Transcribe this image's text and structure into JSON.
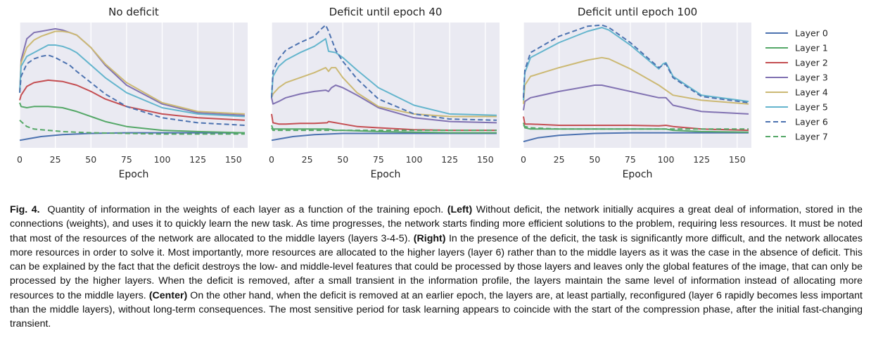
{
  "chart_data": [
    {
      "type": "line",
      "title": "No deficit",
      "xlabel": "Epoch",
      "ylabel": "",
      "xlim": [
        0,
        160
      ],
      "ylim": [
        0,
        100
      ],
      "xticks": [
        "0",
        "25",
        "50",
        "75",
        "100",
        "125",
        "150"
      ],
      "yticks_shown": false,
      "grid": true,
      "series": [
        {
          "name": "Layer 0",
          "x": [
            0,
            5,
            15,
            30,
            50,
            75,
            100,
            125,
            158
          ],
          "y": [
            6,
            7,
            9,
            10.5,
            11.5,
            12,
            12,
            12,
            12
          ]
        },
        {
          "name": "Layer 1",
          "x": [
            0,
            1,
            5,
            10,
            20,
            30,
            40,
            50,
            60,
            75,
            100,
            125,
            158
          ],
          "y": [
            36,
            33,
            32,
            33,
            33,
            32,
            29,
            25,
            21,
            17,
            14,
            13,
            12
          ]
        },
        {
          "name": "Layer 2",
          "x": [
            0,
            1,
            5,
            10,
            20,
            30,
            40,
            50,
            60,
            75,
            100,
            125,
            158
          ],
          "y": [
            38,
            42,
            49,
            52,
            54,
            53,
            50,
            45,
            39,
            33,
            27,
            24,
            22
          ]
        },
        {
          "name": "Layer 3",
          "x": [
            0,
            1,
            5,
            10,
            15,
            20,
            25,
            30,
            35,
            40,
            50,
            60,
            75,
            100,
            125,
            158
          ],
          "y": [
            44,
            70,
            87,
            92,
            93,
            94,
            95,
            94,
            92,
            90,
            80,
            66,
            50,
            35,
            28,
            26
          ]
        },
        {
          "name": "Layer 4",
          "x": [
            0,
            1,
            5,
            10,
            15,
            20,
            25,
            30,
            35,
            40,
            50,
            60,
            75,
            100,
            125,
            158
          ],
          "y": [
            44,
            68,
            80,
            86,
            89,
            91,
            93,
            93,
            92,
            90,
            80,
            67,
            52,
            36,
            29,
            27
          ]
        },
        {
          "name": "Layer 5",
          "x": [
            0,
            1,
            5,
            10,
            15,
            20,
            25,
            30,
            35,
            40,
            50,
            60,
            75,
            100,
            125,
            158
          ],
          "y": [
            44,
            65,
            73,
            76,
            79,
            82,
            82,
            81,
            79,
            76,
            66,
            56,
            44,
            32,
            27,
            25
          ]
        },
        {
          "name": "Layer 6",
          "x": [
            0,
            1,
            5,
            10,
            15,
            20,
            25,
            30,
            35,
            40,
            50,
            60,
            75,
            100,
            125,
            158
          ],
          "y": [
            44,
            57,
            67,
            71,
            73,
            74,
            72,
            69,
            66,
            61,
            52,
            43,
            33,
            24,
            20,
            18
          ]
        },
        {
          "name": "Layer 7",
          "x": [
            0,
            1,
            5,
            10,
            20,
            30,
            50,
            75,
            100,
            125,
            158
          ],
          "y": [
            22,
            21,
            17,
            15,
            14,
            13,
            12,
            11.5,
            11,
            11,
            11
          ]
        }
      ]
    },
    {
      "type": "line",
      "title": "Deficit until epoch 40",
      "xlabel": "Epoch",
      "ylabel": "",
      "xlim": [
        0,
        160
      ],
      "ylim": [
        0,
        100
      ],
      "xticks": [
        "0",
        "25",
        "50",
        "75",
        "100",
        "125",
        "150"
      ],
      "yticks_shown": false,
      "grid": true,
      "series": [
        {
          "name": "Layer 0",
          "x": [
            0,
            5,
            15,
            30,
            40,
            50,
            75,
            100,
            125,
            158
          ],
          "y": [
            6,
            7,
            9,
            10.5,
            11,
            11.5,
            11.5,
            11.5,
            11.5,
            11.5
          ]
        },
        {
          "name": "Layer 1",
          "x": [
            0,
            1,
            5,
            10,
            20,
            30,
            39,
            40,
            45,
            50,
            75,
            100,
            125,
            158
          ],
          "y": [
            18,
            15,
            15,
            15,
            15,
            15,
            15,
            15,
            14,
            14,
            13,
            12.5,
            12,
            12
          ]
        },
        {
          "name": "Layer 2",
          "x": [
            0,
            1,
            5,
            10,
            20,
            30,
            39,
            40,
            45,
            50,
            60,
            75,
            100,
            125,
            158
          ],
          "y": [
            27,
            20,
            19,
            19,
            19.5,
            19.5,
            20,
            21,
            20,
            19,
            17,
            16,
            14.5,
            14,
            14
          ]
        },
        {
          "name": "Layer 3",
          "x": [
            0,
            1,
            5,
            10,
            20,
            30,
            38,
            40,
            42,
            45,
            50,
            60,
            75,
            100,
            125,
            158
          ],
          "y": [
            40,
            35,
            37,
            40,
            43,
            45,
            46,
            45,
            48,
            50,
            48,
            42,
            32,
            24,
            21,
            20
          ]
        },
        {
          "name": "Layer 4",
          "x": [
            0,
            1,
            5,
            10,
            20,
            30,
            38,
            40,
            42,
            45,
            50,
            60,
            75,
            100,
            125,
            158
          ],
          "y": [
            40,
            43,
            48,
            52,
            56,
            60,
            64,
            61,
            64,
            64,
            56,
            44,
            33,
            27,
            25,
            25
          ]
        },
        {
          "name": "Layer 5",
          "x": [
            0,
            1,
            5,
            10,
            20,
            30,
            38,
            40,
            45,
            50,
            60,
            75,
            100,
            125,
            158
          ],
          "y": [
            40,
            57,
            65,
            70,
            76,
            81,
            87,
            77,
            76,
            72,
            62,
            48,
            34,
            27,
            26
          ]
        },
        {
          "name": "Layer 6",
          "x": [
            0,
            1,
            5,
            10,
            20,
            30,
            35,
            38,
            40,
            45,
            50,
            60,
            75,
            100,
            125,
            158
          ],
          "y": [
            40,
            61,
            71,
            78,
            84,
            89,
            95,
            98,
            93,
            78,
            69,
            55,
            39,
            27,
            23,
            22
          ]
        },
        {
          "name": "Layer 7",
          "x": [
            0,
            1,
            5,
            10,
            20,
            30,
            40,
            50,
            75,
            100,
            125,
            158
          ],
          "y": [
            16,
            14,
            14,
            14,
            14,
            14,
            14,
            14,
            14,
            14,
            14,
            14
          ]
        }
      ]
    },
    {
      "type": "line",
      "title": "Deficit until epoch 100",
      "xlabel": "Epoch",
      "ylabel": "",
      "xlim": [
        0,
        160
      ],
      "ylim": [
        0,
        100
      ],
      "xticks": [
        "0",
        "25",
        "50",
        "75",
        "100",
        "125",
        "150"
      ],
      "yticks_shown": false,
      "grid": true,
      "series": [
        {
          "name": "Layer 0",
          "x": [
            0,
            10,
            25,
            50,
            75,
            100,
            125,
            158
          ],
          "y": [
            5,
            8,
            10,
            11.5,
            12,
            12,
            12,
            12
          ]
        },
        {
          "name": "Layer 1",
          "x": [
            0,
            1,
            5,
            25,
            50,
            75,
            100,
            105,
            125,
            158
          ],
          "y": [
            20,
            16,
            15,
            15,
            15,
            15,
            15,
            14,
            13,
            12.5
          ]
        },
        {
          "name": "Layer 2",
          "x": [
            0,
            1,
            5,
            25,
            50,
            75,
            95,
            100,
            105,
            125,
            158
          ],
          "y": [
            25,
            19,
            19,
            18,
            18,
            18,
            17.5,
            18,
            17,
            15,
            14
          ]
        },
        {
          "name": "Layer 3",
          "x": [
            0,
            1,
            5,
            25,
            50,
            55,
            75,
            95,
            100,
            105,
            125,
            158
          ],
          "y": [
            30,
            37,
            40,
            45,
            50,
            50,
            45,
            40,
            40,
            34,
            29,
            27
          ]
        },
        {
          "name": "Layer 4",
          "x": [
            0,
            1,
            5,
            25,
            45,
            55,
            60,
            75,
            95,
            100,
            105,
            125,
            158
          ],
          "y": [
            35,
            50,
            57,
            64,
            70,
            72,
            71,
            63,
            50,
            46,
            42,
            38,
            35
          ]
        },
        {
          "name": "Layer 5",
          "x": [
            0,
            1,
            5,
            25,
            45,
            55,
            60,
            75,
            95,
            98,
            100,
            105,
            125,
            158
          ],
          "y": [
            38,
            60,
            72,
            84,
            93,
            96,
            94,
            82,
            63,
            67,
            68,
            57,
            42,
            37
          ]
        },
        {
          "name": "Layer 6",
          "x": [
            0,
            1,
            5,
            25,
            45,
            55,
            60,
            75,
            95,
            98,
            100,
            105,
            125,
            158
          ],
          "y": [
            40,
            62,
            76,
            89,
            97,
            98,
            96,
            84,
            64,
            66,
            67,
            56,
            41,
            36
          ]
        },
        {
          "name": "Layer 7",
          "x": [
            0,
            1,
            5,
            25,
            50,
            75,
            100,
            125,
            158
          ],
          "y": [
            18,
            17,
            16,
            15,
            15,
            15,
            15,
            15,
            15
          ]
        }
      ]
    }
  ],
  "legend": {
    "placement": "right",
    "items": [
      {
        "name": "Layer 0",
        "color": "#4c72b0",
        "dash": false
      },
      {
        "name": "Layer 1",
        "color": "#55a868",
        "dash": false
      },
      {
        "name": "Layer 2",
        "color": "#c44e52",
        "dash": false
      },
      {
        "name": "Layer 3",
        "color": "#8172b2",
        "dash": false
      },
      {
        "name": "Layer 4",
        "color": "#ccb974",
        "dash": false
      },
      {
        "name": "Layer 5",
        "color": "#64b5cd",
        "dash": false
      },
      {
        "name": "Layer 6",
        "color": "#4c72b0",
        "dash": true
      },
      {
        "name": "Layer 7",
        "color": "#55a868",
        "dash": true
      }
    ]
  },
  "caption": {
    "label": "Fig. 4.",
    "intro": "Quantity of information in the weights of each layer as a function of the training epoch.",
    "left_tag": "(Left)",
    "left_text": "Without deficit, the network initially acquires a great deal of information, stored in the connections (weights), and uses it to quickly learn the new task. As time progresses, the network starts finding more efficient solutions to the problem, requiring less resources. It must be noted that most of the resources of the network are allocated to the middle layers (layers 3-4-5).",
    "right_tag": "(Right)",
    "right_text": "In the presence of the deficit, the task is significantly more difficult, and the network allocates more resources in order to solve it. Most importantly, more resources are allocated to the higher layers (layer 6) rather than to the middle layers as it was the case in the absence of deficit. This can be explained by the fact that the deficit destroys the low- and middle-level features that could be processed by those layers and leaves only the global features of the image, that can only be processed by the higher layers. When the deficit is removed, after a small transient in the information profile, the layers maintain the same level of information instead of allocating more resources to the middle layers.",
    "center_tag": "(Center)",
    "center_text": "On the other hand, when the deficit is removed at an earlier epoch, the layers are, at least partially, reconfigured (layer 6 rapidly becomes less important than the middle layers), without long-term consequences. The most sensitive period for task learning appears to coincide with the start of the compression phase, after the initial fast-changing transient."
  }
}
